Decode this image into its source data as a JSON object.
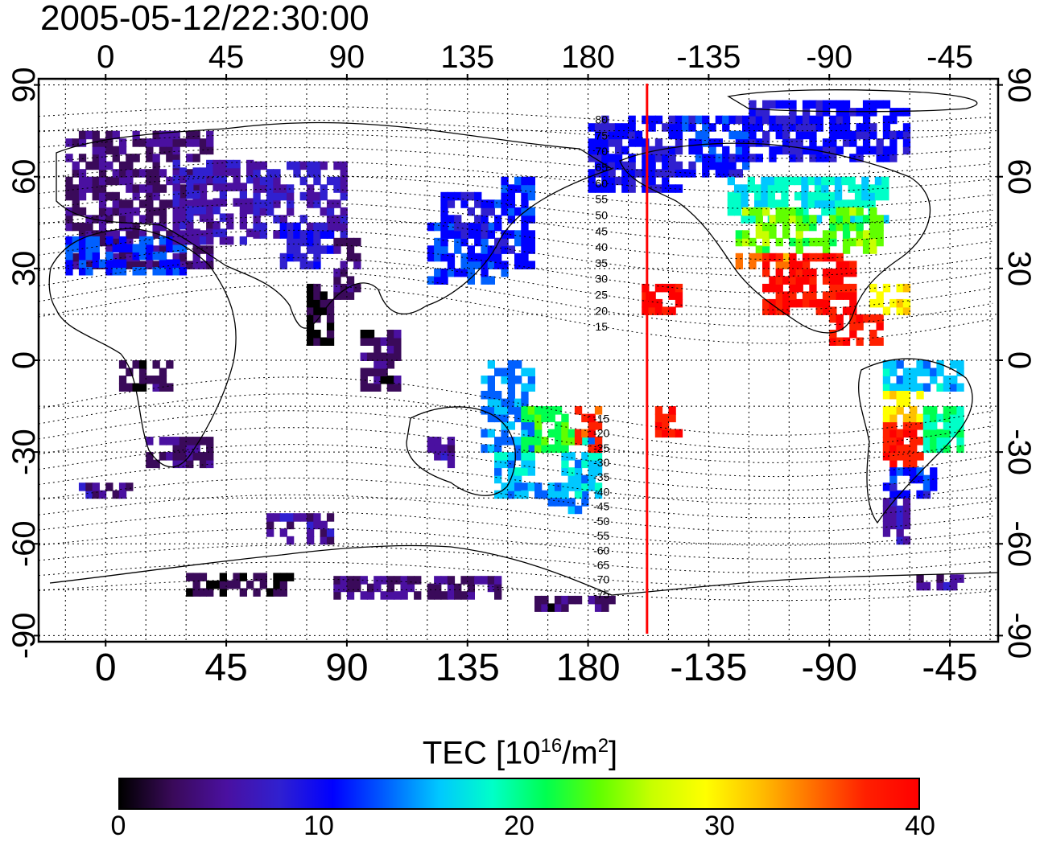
{
  "title": "2005-05-12/22:30:00",
  "lon_tick_labels": [
    "0",
    "45",
    "90",
    "135",
    "180",
    "-135",
    "-90",
    "-45"
  ],
  "lon_tick_values": [
    0,
    45,
    90,
    135,
    180,
    225,
    270,
    315
  ],
  "lat_tick_labels": [
    "90",
    "60",
    "30",
    "0",
    "-30",
    "-60",
    "-90"
  ],
  "lat_tick_values": [
    90,
    60,
    30,
    0,
    -30,
    -60,
    -90
  ],
  "map": {
    "lon_range": [
      -25,
      333
    ],
    "lat_range": [
      -92,
      92
    ],
    "grid": "dotted",
    "terminator_line_lon": 202,
    "terminator_color": "#ff0000",
    "contour_labels": [
      "80",
      "75",
      "70",
      "65",
      "60",
      "55",
      "50",
      "45",
      "40",
      "35",
      "30",
      "25",
      "20",
      "15",
      "-15",
      "-20",
      "-25",
      "-30",
      "-35",
      "-40",
      "-45",
      "-50",
      "-55",
      "-60",
      "-65",
      "-70",
      "-75"
    ],
    "contour_label_lats": [
      80,
      75,
      70,
      65,
      60,
      55,
      50,
      45,
      40,
      35,
      30,
      25,
      20,
      15,
      -15,
      -20,
      -25,
      -30,
      -35,
      -40,
      -45,
      -50,
      -55,
      -60,
      -65,
      -70,
      -75
    ]
  },
  "colorbar": {
    "label_main": "TEC  [10",
    "label_sup1": "16",
    "label_mid": "/m",
    "label_sup2": "2",
    "label_end": "]",
    "ticks": [
      "0",
      "10",
      "20",
      "30",
      "40"
    ],
    "tick_values": [
      0,
      10,
      20,
      30,
      40
    ],
    "range": [
      0,
      40
    ],
    "colors": [
      "#000000",
      "#3a0a5a",
      "#4a10a0",
      "#3020d0",
      "#0000ff",
      "#0060ff",
      "#00c8ff",
      "#00ffc8",
      "#00ff50",
      "#60ff00",
      "#c8ff00",
      "#ffff00",
      "#ffc000",
      "#ff7000",
      "#ff2000",
      "#ff0000"
    ]
  },
  "tec_regions": [
    {
      "lon": [
        -15,
        40
      ],
      "lat": [
        30,
        75
      ],
      "tec": 4
    },
    {
      "lon": [
        -15,
        30
      ],
      "lat": [
        28,
        40
      ],
      "tec": 12
    },
    {
      "lon": [
        25,
        55
      ],
      "lat": [
        38,
        65
      ],
      "tec": 6
    },
    {
      "lon": [
        55,
        90
      ],
      "lat": [
        40,
        65
      ],
      "tec": 7
    },
    {
      "lon": [
        65,
        85
      ],
      "lat": [
        30,
        45
      ],
      "tec": 9
    },
    {
      "lon": [
        85,
        95
      ],
      "lat": [
        20,
        40
      ],
      "tec": 4
    },
    {
      "lon": [
        75,
        85
      ],
      "lat": [
        5,
        25
      ],
      "tec": 1
    },
    {
      "lon": [
        95,
        110
      ],
      "lat": [
        -10,
        10
      ],
      "tec": 3
    },
    {
      "lon": [
        120,
        150
      ],
      "lat": [
        25,
        45
      ],
      "tec": 12
    },
    {
      "lon": [
        125,
        145
      ],
      "lat": [
        40,
        55
      ],
      "tec": 10
    },
    {
      "lon": [
        145,
        160
      ],
      "lat": [
        30,
        60
      ],
      "tec": 11
    },
    {
      "lon": [
        140,
        160
      ],
      "lat": [
        0,
        -30
      ],
      "tec": 14
    },
    {
      "lon": [
        145,
        160
      ],
      "lat": [
        -30,
        -45
      ],
      "tec": 16
    },
    {
      "lon": [
        150,
        168
      ],
      "lat": [
        -40,
        -45
      ],
      "tec": 15
    },
    {
      "lon": [
        165,
        180
      ],
      "lat": [
        -40,
        -50
      ],
      "tec": 14
    },
    {
      "lon": [
        170,
        185
      ],
      "lat": [
        -25,
        -45
      ],
      "tec": 16
    },
    {
      "lon": [
        155,
        175
      ],
      "lat": [
        -15,
        -30
      ],
      "tec": 22
    },
    {
      "lon": [
        175,
        185
      ],
      "lat": [
        -15,
        -30
      ],
      "tec": 37
    },
    {
      "lon": [
        120,
        130
      ],
      "lat": [
        -25,
        -35
      ],
      "tec": 5
    },
    {
      "lon": [
        15,
        40
      ],
      "lat": [
        -25,
        -35
      ],
      "tec": 4
    },
    {
      "lon": [
        5,
        25
      ],
      "lat": [
        0,
        -10
      ],
      "tec": 3
    },
    {
      "lon": [
        200,
        215
      ],
      "lat": [
        15,
        25
      ],
      "tec": 39
    },
    {
      "lon": [
        205,
        215
      ],
      "lat": [
        -15,
        -25
      ],
      "tec": 38
    },
    {
      "lon": [
        180,
        215
      ],
      "lat": [
        55,
        80
      ],
      "tec": 10
    },
    {
      "lon": [
        215,
        240
      ],
      "lat": [
        60,
        80
      ],
      "tec": 11
    },
    {
      "lon": [
        240,
        300
      ],
      "lat": [
        65,
        85
      ],
      "tec": 10
    },
    {
      "lon": [
        232,
        290
      ],
      "lat": [
        45,
        60
      ],
      "tec": 18
    },
    {
      "lon": [
        235,
        290
      ],
      "lat": [
        35,
        48
      ],
      "tec": 24
    },
    {
      "lon": [
        235,
        255
      ],
      "lat": [
        30,
        35
      ],
      "tec": 34
    },
    {
      "lon": [
        245,
        280
      ],
      "lat": [
        15,
        33
      ],
      "tec": 39
    },
    {
      "lon": [
        270,
        290
      ],
      "lat": [
        5,
        15
      ],
      "tec": 38
    },
    {
      "lon": [
        285,
        300
      ],
      "lat": [
        15,
        25
      ],
      "tec": 30
    },
    {
      "lon": [
        290,
        320
      ],
      "lat": [
        0,
        -10
      ],
      "tec": 16
    },
    {
      "lon": [
        290,
        305
      ],
      "lat": [
        -20,
        -35
      ],
      "tec": 38
    },
    {
      "lon": [
        290,
        305
      ],
      "lat": [
        -12,
        -20
      ],
      "tec": 31
    },
    {
      "lon": [
        305,
        320
      ],
      "lat": [
        -15,
        -30
      ],
      "tec": 20
    },
    {
      "lon": [
        290,
        310
      ],
      "lat": [
        -35,
        -45
      ],
      "tec": 11
    },
    {
      "lon": [
        290,
        300
      ],
      "lat": [
        -45,
        -60
      ],
      "tec": 6
    },
    {
      "lon": [
        300,
        320
      ],
      "lat": [
        -70,
        -75
      ],
      "tec": 5
    },
    {
      "lon": [
        30,
        70
      ],
      "lat": [
        -70,
        -77
      ],
      "tec": 2
    },
    {
      "lon": [
        85,
        150
      ],
      "lat": [
        -72,
        -78
      ],
      "tec": 4
    },
    {
      "lon": [
        160,
        190
      ],
      "lat": [
        -78,
        -82
      ],
      "tec": 3
    },
    {
      "lon": [
        -10,
        10
      ],
      "lat": [
        -40,
        -45
      ],
      "tec": 5
    },
    {
      "lon": [
        60,
        85
      ],
      "lat": [
        -50,
        -60
      ],
      "tec": 5
    }
  ]
}
